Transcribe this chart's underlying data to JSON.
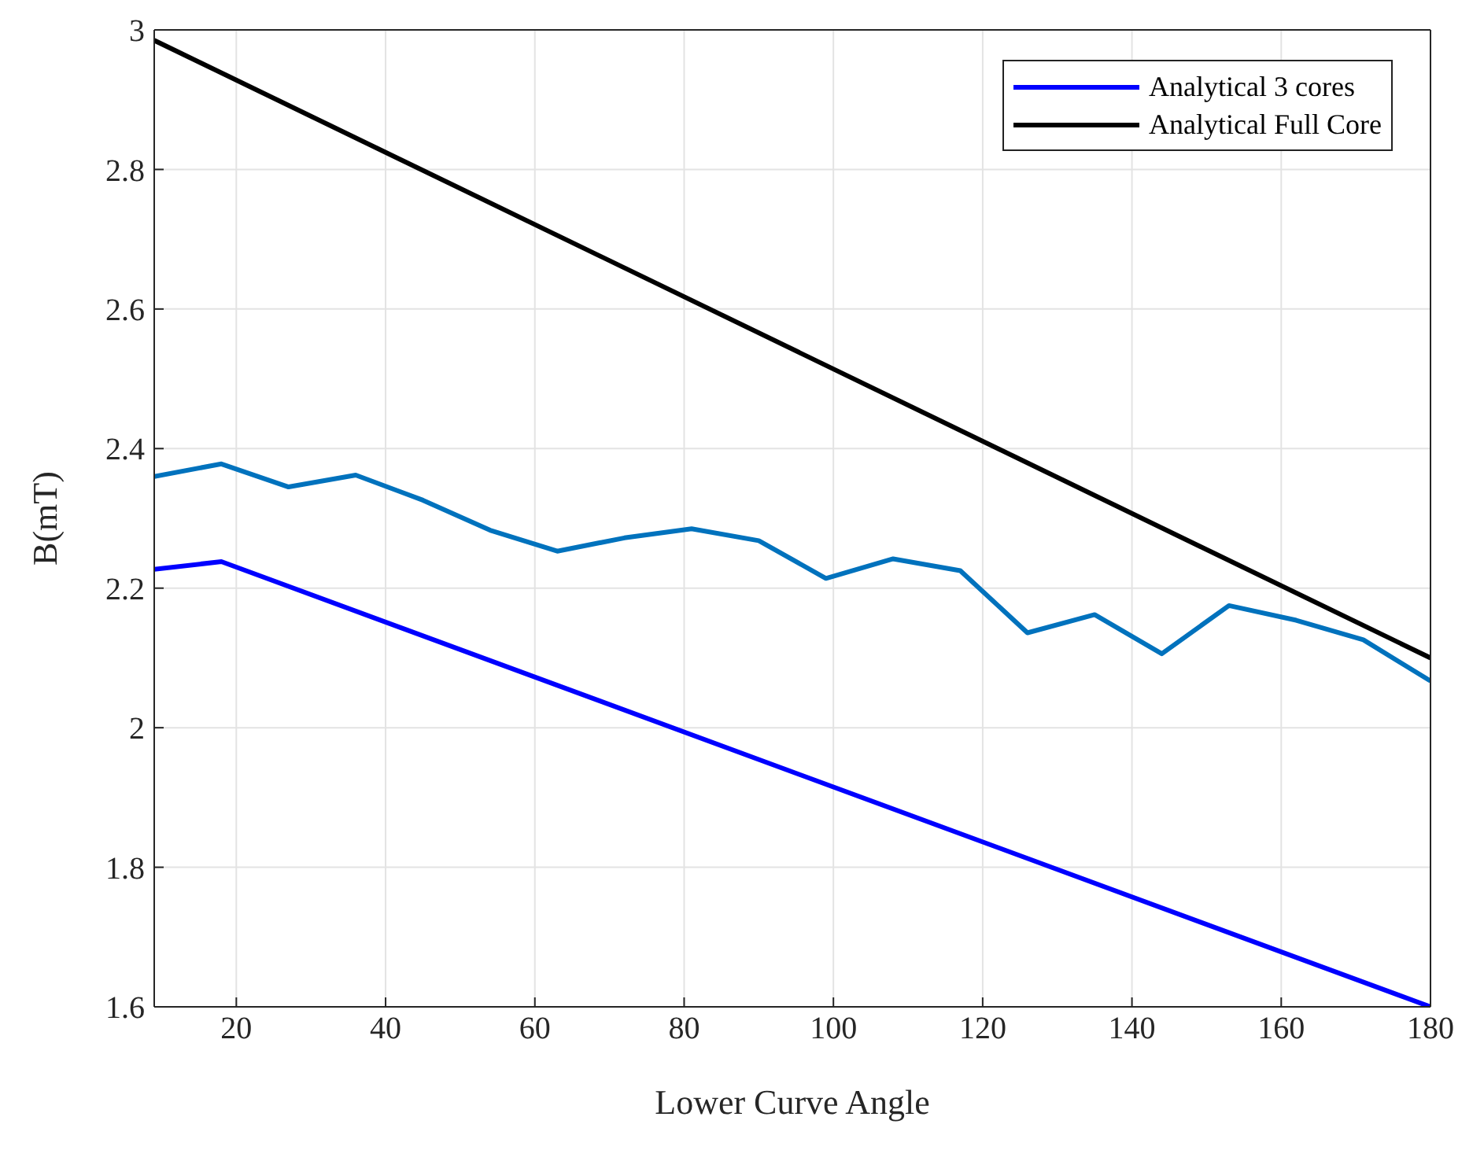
{
  "chart_data": {
    "type": "line",
    "xlabel": "Lower Curve Angle",
    "ylabel": "B(mT)",
    "xlim": [
      9,
      180
    ],
    "ylim": [
      1.6,
      3
    ],
    "xticks": [
      20,
      40,
      60,
      80,
      100,
      120,
      140,
      160,
      180
    ],
    "yticks": [
      1.6,
      1.8,
      2,
      2.2,
      2.4,
      2.6,
      2.8,
      3
    ],
    "grid": true,
    "legend": "top right",
    "marker": "none",
    "line_style": "solid",
    "series": [
      {
        "color": "#0072bd",
        "x": [
          9,
          18,
          27,
          36,
          45,
          54,
          63,
          72,
          81,
          90,
          99,
          108,
          117,
          126,
          135,
          144,
          153,
          162,
          171,
          180
        ],
        "values": [
          2.36,
          2.378,
          2.345,
          2.362,
          2.326,
          2.283,
          2.253,
          2.272,
          2.285,
          2.268,
          2.214,
          2.242,
          2.225,
          2.136,
          2.162,
          2.106,
          2.175,
          2.154,
          2.126,
          2.067
        ]
      },
      {
        "name": "Analytical 3 cores",
        "color": "#0000ff",
        "x": [
          9,
          18,
          180
        ],
        "values": [
          2.227,
          2.238,
          1.6
        ]
      },
      {
        "name": "Analytical Full Core",
        "color": "#000000",
        "x": [
          9,
          180
        ],
        "values": [
          2.985,
          2.1
        ]
      }
    ]
  }
}
